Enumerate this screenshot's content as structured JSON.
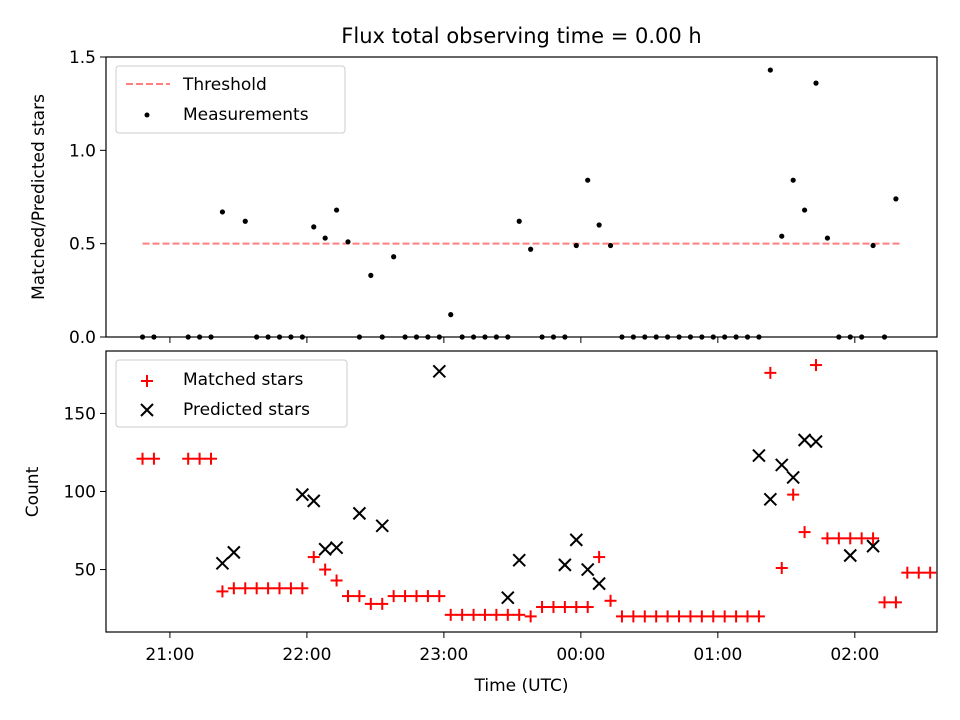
{
  "chart_data": [
    {
      "type": "scatter",
      "title": "Flux total observing time = 0.00 h",
      "ylabel": "Matched/Predicted stars",
      "xlabel": "",
      "ylim": [
        0,
        1.5
      ],
      "yticks": [
        0.0,
        0.5,
        1.0,
        1.5
      ],
      "ytick_labels": [
        "0.0",
        "0.5",
        "1.0",
        "1.5"
      ],
      "legend_position": "upper-left",
      "series": [
        {
          "name": "Threshold",
          "kind": "dashed-line",
          "color": "#ff7f7f",
          "x": [
            "20:48",
            "02:20"
          ],
          "y": [
            0.5,
            0.5
          ]
        },
        {
          "name": "Measurements",
          "kind": "dot",
          "color": "#000000",
          "x": [
            "20:48",
            "20:53",
            "21:08",
            "21:13",
            "21:18",
            "21:23",
            "21:33",
            "21:38",
            "21:43",
            "21:48",
            "21:53",
            "21:58",
            "22:03",
            "22:08",
            "22:13",
            "22:18",
            "22:23",
            "22:28",
            "22:33",
            "22:38",
            "22:43",
            "22:48",
            "22:53",
            "22:58",
            "23:03",
            "23:08",
            "23:13",
            "23:18",
            "23:23",
            "23:28",
            "23:33",
            "23:38",
            "23:43",
            "23:48",
            "23:53",
            "23:58",
            "00:03",
            "00:08",
            "00:13",
            "00:18",
            "00:23",
            "00:28",
            "00:33",
            "00:38",
            "00:43",
            "00:48",
            "00:53",
            "00:58",
            "01:03",
            "01:08",
            "01:13",
            "01:18",
            "01:23",
            "01:28",
            "01:33",
            "01:38",
            "01:43",
            "01:48",
            "01:53",
            "01:58",
            "02:03",
            "02:08",
            "02:13",
            "02:18"
          ],
          "y": [
            0.0,
            0.0,
            0.0,
            0.0,
            0.0,
            0.67,
            0.62,
            0.0,
            0.0,
            0.0,
            0.0,
            0.0,
            0.59,
            0.53,
            0.68,
            0.51,
            0.0,
            0.33,
            0.0,
            0.43,
            0.0,
            0.0,
            0.0,
            0.0,
            0.12,
            0.0,
            0.0,
            0.0,
            0.0,
            0.0,
            0.62,
            0.47,
            0.0,
            0.0,
            0.0,
            0.49,
            0.84,
            0.6,
            0.49,
            0.0,
            0.0,
            0.0,
            0.0,
            0.0,
            0.0,
            0.0,
            0.0,
            0.0,
            0.0,
            0.0,
            0.0,
            0.0,
            1.43,
            0.54,
            0.84,
            0.68,
            1.36,
            0.53,
            0.0,
            0.0,
            0.0,
            0.49,
            0.0,
            0.74
          ]
        }
      ]
    },
    {
      "type": "scatter",
      "title": "",
      "ylabel": "Count",
      "xlabel": "Time (UTC)",
      "ylim": [
        10,
        190
      ],
      "yticks": [
        50,
        100,
        150
      ],
      "ytick_labels": [
        "50",
        "100",
        "150"
      ],
      "xlim": [
        "20:32",
        "02:36"
      ],
      "xticks": [
        "21:00",
        "22:00",
        "23:00",
        "00:00",
        "01:00",
        "02:00"
      ],
      "legend_position": "upper-left",
      "series": [
        {
          "name": "Matched stars",
          "kind": "plus",
          "color": "#ff0000",
          "x": [
            "20:48",
            "20:53",
            "21:08",
            "21:13",
            "21:18",
            "21:23",
            "21:28",
            "21:33",
            "21:38",
            "21:43",
            "21:48",
            "21:53",
            "21:58",
            "22:03",
            "22:08",
            "22:13",
            "22:18",
            "22:23",
            "22:28",
            "22:33",
            "22:38",
            "22:43",
            "22:48",
            "22:53",
            "22:58",
            "23:03",
            "23:08",
            "23:13",
            "23:18",
            "23:23",
            "23:28",
            "23:33",
            "23:38",
            "23:43",
            "23:48",
            "23:53",
            "23:58",
            "00:03",
            "00:08",
            "00:13",
            "00:18",
            "00:23",
            "00:28",
            "00:33",
            "00:38",
            "00:43",
            "00:48",
            "00:53",
            "00:58",
            "01:03",
            "01:08",
            "01:13",
            "01:18",
            "01:23",
            "01:28",
            "01:33",
            "01:38",
            "01:43",
            "01:48",
            "01:53",
            "01:58",
            "02:03",
            "02:08",
            "02:13",
            "02:18",
            "02:23",
            "02:28",
            "02:33"
          ],
          "y": [
            121,
            121,
            121,
            121,
            121,
            36,
            38,
            38,
            38,
            38,
            38,
            38,
            38,
            58,
            50,
            43,
            33,
            33,
            28,
            28,
            33,
            33,
            33,
            33,
            33,
            21,
            21,
            21,
            21,
            21,
            21,
            21,
            20,
            26,
            26,
            26,
            26,
            26,
            58,
            30,
            20,
            20,
            20,
            20,
            20,
            20,
            20,
            20,
            20,
            20,
            20,
            20,
            20,
            176,
            51,
            98,
            74,
            181,
            70,
            70,
            70,
            70,
            70,
            29,
            29,
            48,
            48,
            48
          ]
        },
        {
          "name": "Predicted stars",
          "kind": "x",
          "color": "#000000",
          "x": [
            "21:23",
            "21:28",
            "21:58",
            "22:03",
            "22:08",
            "22:13",
            "22:23",
            "22:33",
            "22:58",
            "23:28",
            "23:33",
            "23:53",
            "23:58",
            "00:03",
            "00:08",
            "01:18",
            "01:23",
            "01:28",
            "01:33",
            "01:38",
            "01:43",
            "01:58",
            "02:08"
          ],
          "y": [
            54,
            61,
            98,
            94,
            63,
            64,
            86,
            78,
            177,
            32,
            56,
            53,
            69,
            50,
            41,
            123,
            95,
            117,
            109,
            133,
            132,
            59,
            65
          ]
        }
      ]
    }
  ]
}
